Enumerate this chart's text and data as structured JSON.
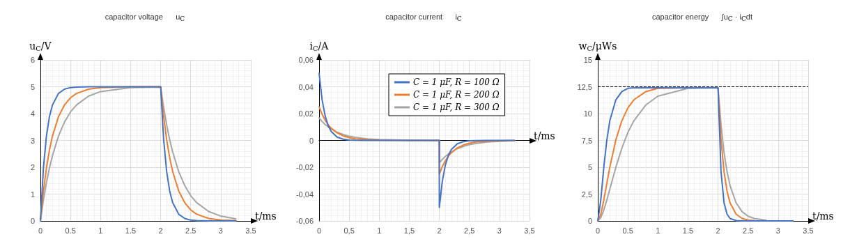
{
  "chart_data": [
    {
      "type": "line",
      "title": "capacitor voltage      u$_{C}$",
      "xlabel": "t/ms",
      "ylabel": "u$_{C}$/V",
      "x": [
        0,
        0.05,
        0.1,
        0.15,
        0.2,
        0.3,
        0.4,
        0.5,
        0.6,
        0.8,
        1,
        1.5,
        2,
        2.05,
        2.1,
        2.15,
        2.2,
        2.3,
        2.4,
        2.5,
        2.6,
        2.8,
        3,
        3.25
      ],
      "series": [
        {
          "color": "#4472c4",
          "values": [
            0,
            1.97,
            3.16,
            3.88,
            4.32,
            4.75,
            4.91,
            4.97,
            4.99,
            5,
            5,
            5,
            5,
            3.03,
            1.84,
            1.12,
            0.68,
            0.25,
            0.09,
            0.03,
            0.01,
            0,
            0,
            0
          ]
        },
        {
          "color": "#ed7d31",
          "values": [
            0,
            1.11,
            1.97,
            2.64,
            3.16,
            3.88,
            4.32,
            4.59,
            4.75,
            4.91,
            4.97,
            5,
            5,
            3.89,
            3.03,
            2.36,
            1.84,
            1.12,
            0.68,
            0.41,
            0.25,
            0.09,
            0.03,
            0.01
          ]
        },
        {
          "color": "#a5a5a5",
          "values": [
            0,
            0.77,
            1.42,
            1.97,
            2.43,
            3.16,
            3.68,
            4.06,
            4.32,
            4.65,
            4.82,
            4.97,
            4.99,
            4.23,
            3.58,
            3.03,
            2.57,
            1.84,
            1.32,
            0.94,
            0.68,
            0.35,
            0.18,
            0.08
          ]
        }
      ],
      "xlim": [
        0,
        3.5
      ],
      "xticks": [
        0,
        0.5,
        1,
        1.5,
        2,
        2.5,
        3,
        3.5
      ],
      "ylim": [
        0,
        6
      ],
      "yticks": [
        0,
        1,
        2,
        3,
        4,
        5,
        6
      ],
      "grid": true
    },
    {
      "type": "line",
      "title": "capacitor current      i$_{C}$",
      "xlabel": "t/ms",
      "ylabel": "i$_{C}$/A",
      "x": [
        0,
        0.05,
        0.1,
        0.15,
        0.2,
        0.3,
        0.4,
        0.5,
        0.6,
        0.8,
        1,
        1.5,
        2,
        2,
        2.05,
        2.1,
        2.15,
        2.2,
        2.3,
        2.4,
        2.5,
        2.6,
        2.8,
        3,
        3.25
      ],
      "series": [
        {
          "name": "C = 1 μF, R = 100 Ω",
          "color": "#4472c4",
          "values": [
            0.05,
            0.0303,
            0.0184,
            0.0112,
            0.0068,
            0.0025,
            0.0009,
            0.0003,
            0.0001,
            0,
            0,
            0,
            0,
            -0.05,
            -0.0303,
            -0.0184,
            -0.0112,
            -0.0068,
            -0.0025,
            -0.0009,
            -0.0003,
            -0.0001,
            0,
            0,
            0
          ]
        },
        {
          "name": "C = 1 μF, R = 200 Ω",
          "color": "#ed7d31",
          "values": [
            0.025,
            0.0195,
            0.0152,
            0.0118,
            0.0092,
            0.0056,
            0.0034,
            0.0021,
            0.0012,
            0.0005,
            0.0002,
            0,
            0,
            -0.025,
            -0.0195,
            -0.0152,
            -0.0118,
            -0.0092,
            -0.0056,
            -0.0034,
            -0.0021,
            -0.0012,
            -0.0005,
            -0.0002,
            0
          ]
        },
        {
          "name": "C = 1 μF, R = 300 Ω",
          "color": "#a5a5a5",
          "values": [
            0.0167,
            0.0141,
            0.0119,
            0.0101,
            0.0086,
            0.0061,
            0.0044,
            0.0031,
            0.0023,
            0.0012,
            0.0006,
            0.0001,
            0,
            -0.0167,
            -0.0141,
            -0.0119,
            -0.0101,
            -0.0086,
            -0.0061,
            -0.0044,
            -0.0031,
            -0.0023,
            -0.0012,
            -0.0006,
            -0.0003
          ]
        }
      ],
      "xlim": [
        0,
        3.5
      ],
      "xticks": [
        0,
        {
          "value": 0.5,
          "label": "0,5"
        },
        1,
        {
          "value": 1.5,
          "label": "1,5"
        },
        2,
        {
          "value": 2.5,
          "label": "2,5"
        },
        3,
        {
          "value": 3.5,
          "label": "3,5"
        }
      ],
      "ylim": [
        -0.06,
        0.06
      ],
      "yticks": [
        {
          "value": -0.06,
          "label": "-0,06"
        },
        {
          "value": -0.04,
          "label": "-0,04"
        },
        {
          "value": -0.02,
          "label": "-0,02"
        },
        0,
        {
          "value": 0.02,
          "label": "0,02"
        },
        {
          "value": 0.04,
          "label": "0,04"
        },
        {
          "value": 0.06,
          "label": "0,06"
        }
      ],
      "grid": true,
      "legend": "top"
    },
    {
      "type": "line",
      "title": "capacitor energy      ∫u$_{C}$ · i$_{C}$dt",
      "xlabel": "t/ms",
      "ylabel": "w$_{C}$/μWs",
      "x": [
        0,
        0.05,
        0.1,
        0.15,
        0.2,
        0.3,
        0.4,
        0.5,
        0.6,
        0.8,
        1,
        1.5,
        2,
        2.05,
        2.1,
        2.15,
        2.2,
        2.3,
        2.4,
        2.5,
        2.6,
        2.8,
        3,
        3.25
      ],
      "series": [
        {
          "color": "#4472c4",
          "values": [
            0,
            1.94,
            4.99,
            7.53,
            9.33,
            11.28,
            12.05,
            12.35,
            12.4,
            12.4,
            12.4,
            12.4,
            12.4,
            4.59,
            1.69,
            0.63,
            0.23,
            0.03,
            0,
            0,
            0,
            0,
            0,
            0
          ]
        },
        {
          "color": "#ed7d31",
          "values": [
            0,
            0.62,
            1.94,
            3.48,
            4.99,
            7.53,
            9.33,
            10.53,
            11.28,
            12.05,
            12.35,
            12.4,
            12.4,
            7.57,
            4.59,
            2.78,
            1.69,
            0.63,
            0.23,
            0.08,
            0.03,
            null,
            null,
            null
          ]
        },
        {
          "color": "#a5a5a5",
          "values": [
            0,
            0.3,
            1.01,
            1.94,
            2.95,
            4.99,
            6.77,
            8.24,
            9.33,
            10.81,
            11.62,
            12.35,
            12.4,
            8.95,
            6.41,
            4.59,
            3.3,
            1.69,
            0.87,
            0.44,
            0.23,
            0.06,
            null,
            null
          ]
        }
      ],
      "xlim": [
        0,
        3.5
      ],
      "xticks": [
        0,
        0.5,
        1,
        1.5,
        2,
        2.5,
        3,
        3.5
      ],
      "ylim": [
        0,
        15
      ],
      "yticks": [
        0,
        {
          "value": 2.5,
          "label": "2,5"
        },
        5,
        {
          "value": 7.5,
          "label": "7,5"
        },
        10,
        {
          "value": 12.5,
          "label": "12,5"
        },
        15
      ],
      "ref_lines": [
        {
          "axis": "y",
          "value": 12.5,
          "color": "#000000",
          "line_style": "dashed"
        }
      ],
      "grid": true
    }
  ]
}
